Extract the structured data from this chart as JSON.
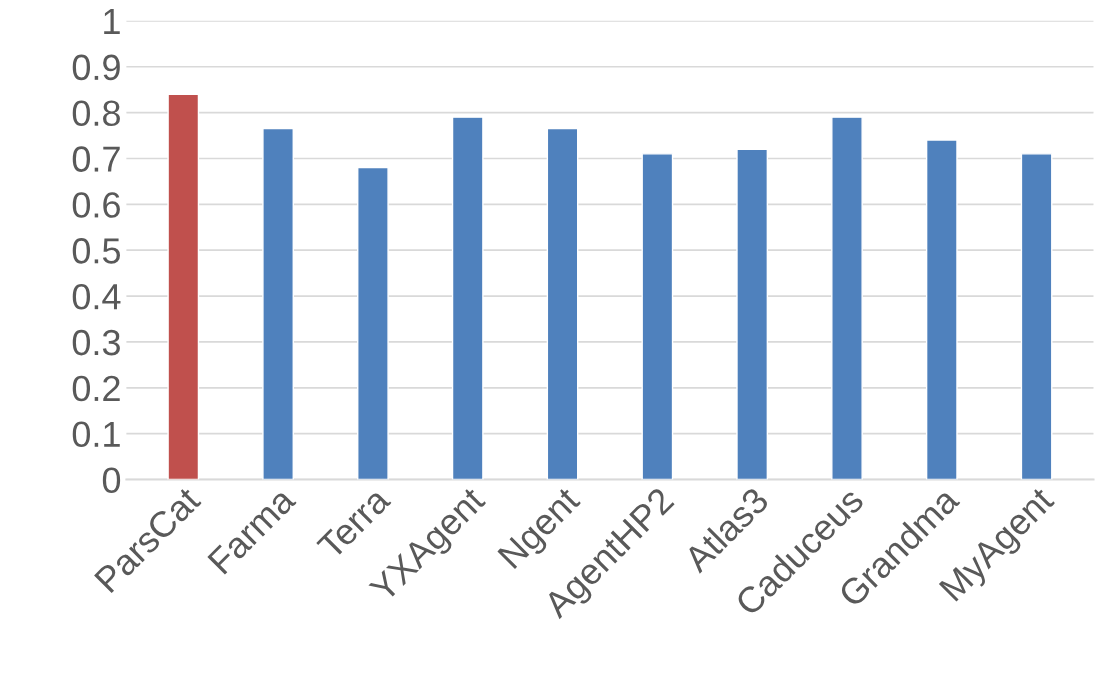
{
  "chart_data": {
    "type": "bar",
    "categories": [
      "ParsCat",
      "Farma",
      "Terra",
      "YXAgent",
      "Ngent",
      "AgentHP2",
      "Atlas3",
      "Caduceus",
      "Grandma",
      "MyAgent"
    ],
    "values": [
      0.84,
      0.765,
      0.68,
      0.79,
      0.765,
      0.71,
      0.72,
      0.79,
      0.74,
      0.71
    ],
    "colors": [
      "#c0504d",
      "#4f81bd",
      "#4f81bd",
      "#4f81bd",
      "#4f81bd",
      "#4f81bd",
      "#4f81bd",
      "#4f81bd",
      "#4f81bd",
      "#4f81bd"
    ],
    "ylim": [
      0,
      1
    ],
    "yticks": [
      0,
      0.1,
      0.2,
      0.3,
      0.4,
      0.5,
      0.6,
      0.7,
      0.8,
      0.9,
      1
    ],
    "grid": "y"
  }
}
